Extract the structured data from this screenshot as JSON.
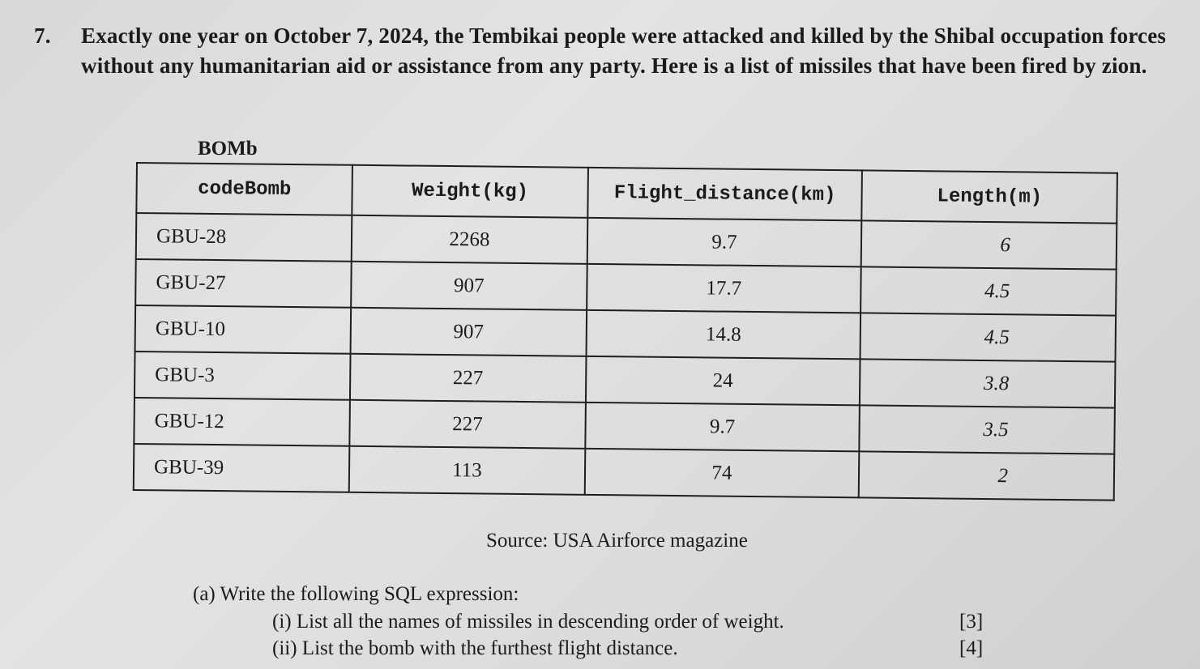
{
  "question": {
    "number": "7.",
    "text_before_italic": "Exactly one year on October 7, 2024, the Tembikai people were attacked and killed by the Shibal occupation forces without any humanitarian aid or assistance from any party. Here is a list of missiles that have been fired by zion.",
    "text_after_italic": "",
    "italic_phrase": ""
  },
  "table": {
    "caption": "BOMb",
    "headers": [
      "codeBomb",
      "Weight(kg)",
      "Flight_distance(km)",
      "Length(m)"
    ],
    "rows": [
      [
        "GBU-28",
        "2268",
        "9.7",
        "6"
      ],
      [
        "GBU-27",
        "907",
        "17.7",
        "4.5"
      ],
      [
        "GBU-10",
        "907",
        "14.8",
        "4.5"
      ],
      [
        "GBU-3",
        "227",
        "24",
        "3.8"
      ],
      [
        "GBU-12",
        "227",
        "9.7",
        "3.5"
      ],
      [
        "GBU-39",
        "113",
        "74",
        "2"
      ]
    ]
  },
  "source": "Source: USA Airforce magazine",
  "part_a": {
    "label": "(a)  Write the following SQL expression:",
    "sub_items": [
      {
        "label": "(i)  List all the names of missiles in descending order of weight.",
        "marks": "[3]"
      },
      {
        "label": "(ii) List the bomb with the furthest flight distance.",
        "marks": "[4]"
      }
    ]
  }
}
